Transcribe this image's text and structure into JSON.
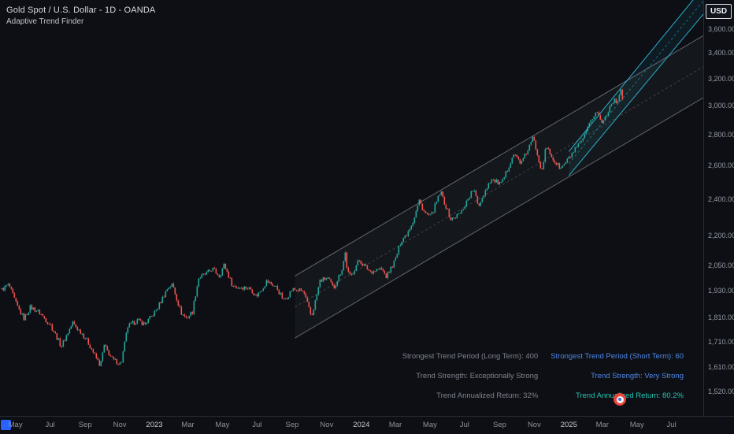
{
  "legend": {
    "title": "Gold Spot / U.S. Dollar - 1D - OANDA",
    "indicator": "Adaptive Trend Finder"
  },
  "currency_label": "USD",
  "colors": {
    "background": "#0d0f14",
    "axis_text": "#949aa5",
    "axis_line": "#272c35",
    "candle_up": "#26a69a",
    "candle_down": "#ef5350",
    "channel_long": "#a6aab4",
    "channel_short": "#2fb5d6",
    "stat_gray": "#7f838e",
    "stat_blue": "#4f88e8",
    "stat_teal": "#27c6b2",
    "accent_blue": "#2962ff"
  },
  "price_axis": {
    "ticks": [
      {
        "label": "3,600.000",
        "value": 3600
      },
      {
        "label": "3,400.000",
        "value": 3400
      },
      {
        "label": "3,200.000",
        "value": 3200
      },
      {
        "label": "3,000.000",
        "value": 3000
      },
      {
        "label": "2,800.000",
        "value": 2800
      },
      {
        "label": "2,600.000",
        "value": 2600
      },
      {
        "label": "2,400.000",
        "value": 2400
      },
      {
        "label": "2,200.000",
        "value": 2200
      },
      {
        "label": "2,050.000",
        "value": 2050
      },
      {
        "label": "1,930.000",
        "value": 1930
      },
      {
        "label": "1,810.000",
        "value": 1810
      },
      {
        "label": "1,710.000",
        "value": 1710
      },
      {
        "label": "1,610.000",
        "value": 1610
      },
      {
        "label": "1,520.000",
        "value": 1520
      }
    ]
  },
  "time_axis": {
    "ticks": [
      {
        "label": "May",
        "date": "2022-05-01"
      },
      {
        "label": "Jul",
        "date": "2022-07-01"
      },
      {
        "label": "Sep",
        "date": "2022-09-01"
      },
      {
        "label": "Nov",
        "date": "2022-11-01"
      },
      {
        "label": "2023",
        "date": "2023-01-01",
        "year": true
      },
      {
        "label": "Mar",
        "date": "2023-03-01"
      },
      {
        "label": "May",
        "date": "2023-05-01"
      },
      {
        "label": "Jul",
        "date": "2023-07-01"
      },
      {
        "label": "Sep",
        "date": "2023-09-01"
      },
      {
        "label": "Nov",
        "date": "2023-11-01"
      },
      {
        "label": "2024",
        "date": "2024-01-01",
        "year": true
      },
      {
        "label": "Mar",
        "date": "2024-03-01"
      },
      {
        "label": "May",
        "date": "2024-05-01"
      },
      {
        "label": "Jul",
        "date": "2024-07-01"
      },
      {
        "label": "Sep",
        "date": "2024-09-01"
      },
      {
        "label": "Nov",
        "date": "2024-11-01"
      },
      {
        "label": "2025",
        "date": "2025-01-01",
        "year": true
      },
      {
        "label": "Mar",
        "date": "2025-03-01"
      },
      {
        "label": "May",
        "date": "2025-05-01"
      },
      {
        "label": "Jul",
        "date": "2025-07-01"
      }
    ]
  },
  "stats": {
    "rows": [
      {
        "left": "Strongest Trend Period (Long Term): 400",
        "right": "Strongest Trend Period (Short Term): 60",
        "right_color": "stat_blue"
      },
      {
        "left": "Trend Strength: Exceptionally Strong",
        "right": "Trend Strength: Very Strong",
        "right_color": "stat_blue"
      },
      {
        "left": "Trend Annualized Return: 32%",
        "right": "Trend Annualized Return: 80.2%",
        "right_color": "stat_teal"
      }
    ]
  },
  "chart_data": {
    "type": "candlestick",
    "title": "Gold Spot / U.S. Dollar",
    "interval": "1D",
    "source": "OANDA",
    "scale": "log",
    "x_range": [
      "2022-04-07",
      "2025-08-26"
    ],
    "y_range": [
      1470,
      3860
    ],
    "price_path": [
      [
        "2022-04-07",
        1935
      ],
      [
        "2022-04-19",
        1952
      ],
      [
        "2022-05-03",
        1868
      ],
      [
        "2022-05-16",
        1812
      ],
      [
        "2022-05-27",
        1853
      ],
      [
        "2022-06-13",
        1828
      ],
      [
        "2022-07-01",
        1790
      ],
      [
        "2022-07-21",
        1685
      ],
      [
        "2022-08-10",
        1793
      ],
      [
        "2022-08-25",
        1750
      ],
      [
        "2022-09-16",
        1662
      ],
      [
        "2022-09-28",
        1618
      ],
      [
        "2022-10-04",
        1700
      ],
      [
        "2022-10-20",
        1632
      ],
      [
        "2022-11-03",
        1618
      ],
      [
        "2022-11-15",
        1778
      ],
      [
        "2022-12-01",
        1798
      ],
      [
        "2022-12-15",
        1777
      ],
      [
        "2023-01-05",
        1852
      ],
      [
        "2023-01-25",
        1940
      ],
      [
        "2023-02-02",
        1955
      ],
      [
        "2023-02-17",
        1838
      ],
      [
        "2023-02-27",
        1812
      ],
      [
        "2023-03-09",
        1832
      ],
      [
        "2023-03-20",
        1985
      ],
      [
        "2023-04-13",
        2040
      ],
      [
        "2023-04-26",
        1995
      ],
      [
        "2023-05-04",
        2048
      ],
      [
        "2023-05-19",
        1958
      ],
      [
        "2023-06-02",
        1950
      ],
      [
        "2023-06-21",
        1932
      ],
      [
        "2023-06-29",
        1905
      ],
      [
        "2023-07-18",
        1978
      ],
      [
        "2023-08-04",
        1940
      ],
      [
        "2023-08-17",
        1888
      ],
      [
        "2023-09-01",
        1942
      ],
      [
        "2023-09-21",
        1920
      ],
      [
        "2023-10-05",
        1815
      ],
      [
        "2023-10-20",
        1980
      ],
      [
        "2023-11-02",
        1985
      ],
      [
        "2023-11-13",
        1938
      ],
      [
        "2023-11-28",
        2040
      ],
      [
        "2023-12-04",
        2125
      ],
      [
        "2023-12-07",
        2028
      ],
      [
        "2023-12-13",
        1992
      ],
      [
        "2023-12-28",
        2072
      ],
      [
        "2024-01-17",
        2028
      ],
      [
        "2024-02-05",
        2028
      ],
      [
        "2024-02-14",
        1992
      ],
      [
        "2024-03-01",
        2085
      ],
      [
        "2024-03-11",
        2180
      ],
      [
        "2024-03-21",
        2205
      ],
      [
        "2024-04-02",
        2280
      ],
      [
        "2024-04-12",
        2398
      ],
      [
        "2024-04-22",
        2330
      ],
      [
        "2024-05-03",
        2302
      ],
      [
        "2024-05-20",
        2438
      ],
      [
        "2024-06-07",
        2293
      ],
      [
        "2024-06-25",
        2320
      ],
      [
        "2024-07-17",
        2468
      ],
      [
        "2024-07-25",
        2368
      ],
      [
        "2024-08-16",
        2508
      ],
      [
        "2024-09-04",
        2495
      ],
      [
        "2024-09-25",
        2668
      ],
      [
        "2024-10-09",
        2612
      ],
      [
        "2024-10-30",
        2788
      ],
      [
        "2024-11-14",
        2562
      ],
      [
        "2024-11-22",
        2715
      ],
      [
        "2024-12-06",
        2635
      ],
      [
        "2024-12-18",
        2588
      ],
      [
        "2025-01-02",
        2642
      ],
      [
        "2025-01-16",
        2718
      ],
      [
        "2025-01-31",
        2812
      ],
      [
        "2025-02-10",
        2905
      ],
      [
        "2025-02-20",
        2950
      ],
      [
        "2025-02-27",
        2875
      ],
      [
        "2025-03-03",
        2895
      ],
      [
        "2025-03-13",
        2990
      ],
      [
        "2025-03-19",
        3045
      ],
      [
        "2025-03-27",
        3025
      ],
      [
        "2025-04-02",
        3122
      ],
      [
        "2025-04-08",
        2992
      ]
    ],
    "channels": [
      {
        "name": "long-term channel",
        "period": 400,
        "color_key": "channel_long",
        "start_date": "2023-09-06",
        "end_date": "2025-08-26",
        "upper_start": 2000,
        "lower_start": 1725,
        "upper_end": 3544,
        "lower_end": 3057,
        "fill_opacity": 0.05,
        "line_opacity": 0.55
      },
      {
        "name": "short-term channel",
        "period": 60,
        "color_key": "channel_short",
        "start_date": "2025-01-01",
        "end_date": "2025-08-26",
        "upper_start": 2690,
        "lower_start": 2540,
        "upper_end": 3975,
        "lower_end": 3730,
        "fill_opacity": 0.08,
        "line_opacity": 0.95
      }
    ]
  }
}
